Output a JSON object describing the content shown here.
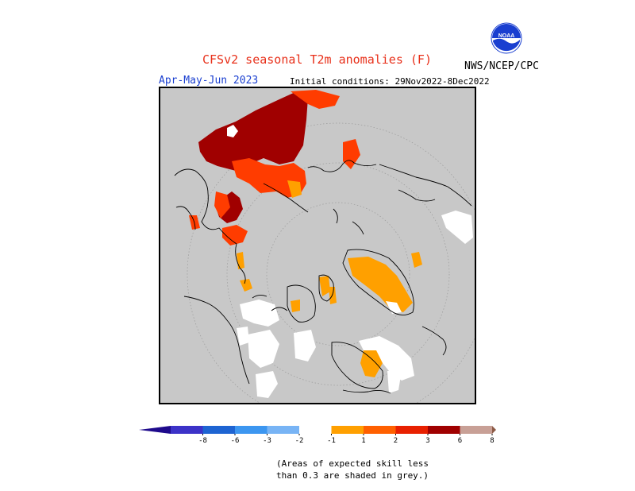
{
  "header": {
    "title": "CFSv2 seasonal T2m anomalies (F)",
    "season": "Apr-May-Jun 2023",
    "initial_conditions": "Initial conditions: 29Nov2022-8Dec2022",
    "agency": "NWS/NCEP/CPC",
    "logo_text": "NOAA"
  },
  "colorbar": {
    "ticks": [
      "-8",
      "-6",
      "-3",
      "-2",
      "-1",
      "1",
      "2",
      "3",
      "6",
      "8"
    ],
    "colors": [
      "#1e0a8c",
      "#3c32c8",
      "#1e64d2",
      "#3c96f0",
      "#78b4f5",
      "#ffffff",
      "#ffa000",
      "#ff6000",
      "#e82000",
      "#a00000",
      "#c8a096",
      "#8c5a46"
    ]
  },
  "footnote": {
    "line1": "(Areas of expected skill less",
    "line2": "than 0.3 are shaded in grey.)"
  },
  "map": {
    "projection": "North polar stereographic",
    "background_color": "#c8c8c8",
    "anomaly_colors": {
      "warm_1_2": "#ffa000",
      "warm_2_3": "#ff3c00",
      "warm_3_6": "#a00000",
      "near_normal": "#ffffff"
    }
  }
}
